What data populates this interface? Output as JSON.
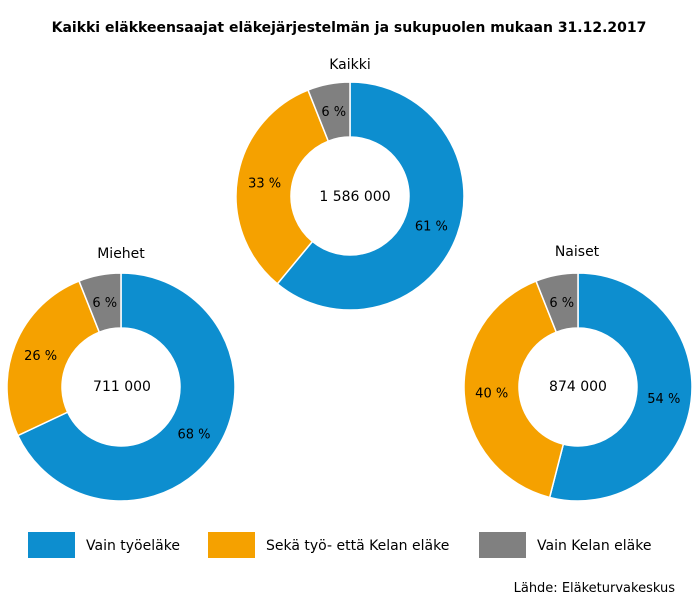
{
  "title": "Kaikki eläkkeensaajat eläkejärjestelmän ja sukupuolen mukaan 31.12.2017",
  "source": "Lähde: Eläketurvakeskus",
  "chart_data": {
    "type": "donut",
    "title": "Kaikki eläkkeensaajat eläkejärjestelmän ja sukupuolen mukaan 31.12.2017",
    "categories": [
      "Vain työeläke",
      "Sekä työ- että Kelan eläke",
      "Vain Kelan eläke"
    ],
    "colors": [
      "#0d8ecf",
      "#f5a100",
      "#808080"
    ],
    "legend_position": "bottom",
    "donuts": [
      {
        "key": "kaikki",
        "name": "Kaikki",
        "total_label": "1 586 000",
        "values": [
          61,
          33,
          6
        ],
        "value_labels": [
          "61 %",
          "33 %",
          "6 %"
        ]
      },
      {
        "key": "miehet",
        "name": "Miehet",
        "total_label": "711 000",
        "values": [
          68,
          26,
          6
        ],
        "value_labels": [
          "68 %",
          "26 %",
          "6 %"
        ]
      },
      {
        "key": "naiset",
        "name": "Naiset",
        "total_label": "874 000",
        "values": [
          54,
          40,
          6
        ],
        "value_labels": [
          "54 %",
          "40 %",
          "6 %"
        ]
      }
    ]
  }
}
